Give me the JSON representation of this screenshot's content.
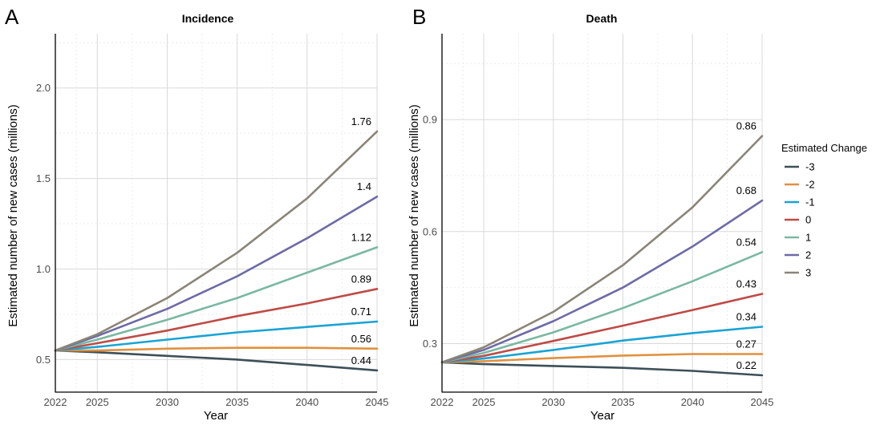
{
  "chart_data": [
    {
      "type": "line",
      "panel_label": "A",
      "title": "Incidence",
      "xlabel": "Year",
      "ylabel": "Estimated number of new cases (millions)",
      "x": [
        2022,
        2025,
        2030,
        2035,
        2040,
        2045
      ],
      "xticks": [
        "2022",
        "2025",
        "2030",
        "2035",
        "2040",
        "2045"
      ],
      "yticks": [
        "0.5",
        "1.0",
        "1.5",
        "2.0"
      ],
      "xlim": [
        2022,
        2045
      ],
      "ylim": [
        0.32,
        2.3
      ],
      "grid": true,
      "series": [
        {
          "name": "-3",
          "values": [
            0.55,
            0.54,
            0.52,
            0.5,
            0.47,
            0.44
          ],
          "end_label": "0.44"
        },
        {
          "name": "-2",
          "values": [
            0.55,
            0.55,
            0.56,
            0.565,
            0.565,
            0.56
          ],
          "end_label": "0.56"
        },
        {
          "name": "-1",
          "values": [
            0.55,
            0.57,
            0.61,
            0.65,
            0.68,
            0.71
          ],
          "end_label": "0.71"
        },
        {
          "name": "0",
          "values": [
            0.55,
            0.59,
            0.66,
            0.74,
            0.81,
            0.89
          ],
          "end_label": "0.89"
        },
        {
          "name": "1",
          "values": [
            0.55,
            0.61,
            0.72,
            0.84,
            0.98,
            1.12
          ],
          "end_label": "1.12"
        },
        {
          "name": "2",
          "values": [
            0.55,
            0.63,
            0.78,
            0.96,
            1.17,
            1.4
          ],
          "end_label": "1.4"
        },
        {
          "name": "3",
          "values": [
            0.55,
            0.64,
            0.84,
            1.09,
            1.39,
            1.76
          ],
          "end_label": "1.76"
        }
      ]
    },
    {
      "type": "line",
      "panel_label": "B",
      "title": "Death",
      "xlabel": "Year",
      "ylabel": "Estimated number of new cases (millions)",
      "x": [
        2022,
        2025,
        2030,
        2035,
        2040,
        2045
      ],
      "xticks": [
        "2022",
        "2025",
        "2030",
        "2035",
        "2040",
        "2045"
      ],
      "yticks": [
        "0.3",
        "0.6",
        "0.9"
      ],
      "xlim": [
        2022,
        2045
      ],
      "ylim": [
        0.17,
        1.13
      ],
      "grid": true,
      "series": [
        {
          "name": "-3",
          "values": [
            0.25,
            0.245,
            0.24,
            0.235,
            0.227,
            0.215
          ],
          "end_label": "0.22"
        },
        {
          "name": "-2",
          "values": [
            0.25,
            0.253,
            0.261,
            0.268,
            0.272,
            0.272
          ],
          "end_label": "0.27"
        },
        {
          "name": "-1",
          "values": [
            0.25,
            0.26,
            0.283,
            0.308,
            0.328,
            0.345
          ],
          "end_label": "0.34"
        },
        {
          "name": "0",
          "values": [
            0.25,
            0.267,
            0.307,
            0.348,
            0.39,
            0.433
          ],
          "end_label": "0.43"
        },
        {
          "name": "1",
          "values": [
            0.25,
            0.275,
            0.33,
            0.395,
            0.467,
            0.545
          ],
          "end_label": "0.54"
        },
        {
          "name": "2",
          "values": [
            0.25,
            0.283,
            0.36,
            0.45,
            0.56,
            0.683
          ],
          "end_label": "0.68"
        },
        {
          "name": "3",
          "values": [
            0.25,
            0.29,
            0.385,
            0.51,
            0.665,
            0.856
          ],
          "end_label": "0.86"
        }
      ]
    }
  ],
  "legend": {
    "title": "Estimated Change",
    "placement": "right",
    "items": [
      {
        "label": "-3",
        "color": "#3d4f58"
      },
      {
        "label": "-2",
        "color": "#e0913f"
      },
      {
        "label": "-1",
        "color": "#1aa3d4"
      },
      {
        "label": "0",
        "color": "#be4b47"
      },
      {
        "label": "1",
        "color": "#7ab8a2"
      },
      {
        "label": "2",
        "color": "#6d6aa6"
      },
      {
        "label": "3",
        "color": "#8a8577"
      }
    ]
  }
}
